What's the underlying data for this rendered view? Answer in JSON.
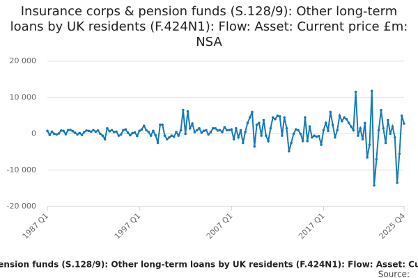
{
  "chart_data": {
    "type": "line",
    "title": "Insurance corps & pension funds (S.128/9): Other long-term loans by UK residents (F.424N1): Flow: Asset: Current price £m: NSA",
    "categories": [
      "1987 Q1",
      null,
      null,
      null,
      null,
      null,
      null,
      null,
      null,
      null,
      null,
      null,
      null,
      null,
      null,
      null,
      null,
      null,
      null,
      null,
      null,
      null,
      null,
      null,
      null,
      null,
      null,
      null,
      null,
      null,
      null,
      null,
      null,
      null,
      null,
      null,
      null,
      null,
      null,
      null,
      "1997 Q1",
      null,
      null,
      null,
      null,
      null,
      null,
      null,
      null,
      null,
      null,
      null,
      null,
      null,
      null,
      null,
      null,
      null,
      null,
      null,
      null,
      null,
      null,
      null,
      null,
      null,
      null,
      null,
      null,
      null,
      null,
      null,
      null,
      null,
      null,
      null,
      null,
      null,
      null,
      null,
      "2007 Q1",
      null,
      null,
      null,
      null,
      null,
      null,
      null,
      null,
      null,
      null,
      null,
      null,
      null,
      null,
      null,
      null,
      null,
      null,
      null,
      null,
      null,
      null,
      null,
      null,
      null,
      null,
      null,
      null,
      null,
      null,
      null,
      null,
      null,
      null,
      null,
      null,
      null,
      null,
      null,
      "2017 Q1",
      null,
      null,
      null,
      null,
      null,
      null,
      null,
      null,
      null,
      null,
      null,
      null,
      null,
      null,
      null,
      null,
      null,
      null,
      null,
      null,
      null,
      null,
      null,
      null,
      null,
      null,
      null,
      null,
      null,
      null,
      null,
      null,
      null,
      null,
      "2025 Q4"
    ],
    "series": [
      {
        "name": "Insurance corps & pension funds (S.128/9): Other long-term loans by UK residents (F.424N1): Flow: Asset: Current price £m: NSA",
        "color": "#1479b8",
        "values": [
          800,
          -300,
          600,
          0,
          -200,
          100,
          900,
          800,
          -100,
          1000,
          1100,
          700,
          300,
          -200,
          200,
          -300,
          500,
          900,
          800,
          600,
          1000,
          600,
          900,
          0,
          -500,
          -1500,
          1500,
          700,
          1000,
          500,
          600,
          -500,
          -200,
          1000,
          1200,
          300,
          -400,
          200,
          400,
          -600,
          800,
          1200,
          2200,
          1000,
          500,
          -500,
          800,
          -400,
          -2500,
          2500,
          2500,
          -500,
          -1500,
          -1000,
          -500,
          -800,
          500,
          -500,
          1000,
          6500,
          0,
          6200,
          1500,
          2800,
          500,
          1000,
          1500,
          300,
          800,
          1000,
          -200,
          500,
          1500,
          1500,
          900,
          1000,
          500,
          1800,
          1000,
          1000,
          1200,
          -1500,
          1500,
          -1000,
          1000,
          -2500,
          500,
          3000,
          4500,
          6000,
          -3500,
          2500,
          3000,
          -500,
          3800,
          -500,
          -2000,
          1500,
          4500,
          4000,
          5000,
          4800,
          -500,
          4500,
          1500,
          -4800,
          -2500,
          0,
          1200,
          1000,
          0,
          -2000,
          4500,
          -2000,
          2000,
          -1000,
          -500,
          -800,
          -600,
          -3000,
          1000,
          3000,
          800,
          6000,
          2500,
          -1000,
          1000,
          5000,
          3500,
          4500,
          4000,
          3000,
          2000,
          1000,
          11500,
          -500,
          1500,
          -1500,
          3000,
          -6500,
          -3000,
          11800,
          -14200,
          -7000,
          1000,
          6500,
          1500,
          -2500,
          3800,
          0,
          2000,
          -1000,
          -13500,
          -5500,
          5000,
          2800
        ]
      }
    ],
    "ylim": [
      -20000,
      20000
    ],
    "yticks": [
      {
        "value": -20000,
        "label": "-20 000"
      },
      {
        "value": -10000,
        "label": "-10 000"
      },
      0,
      {
        "value": 10000,
        "label": "10 000"
      },
      {
        "value": 20000,
        "label": "20 000"
      }
    ],
    "grid": true,
    "source": "Source:"
  }
}
